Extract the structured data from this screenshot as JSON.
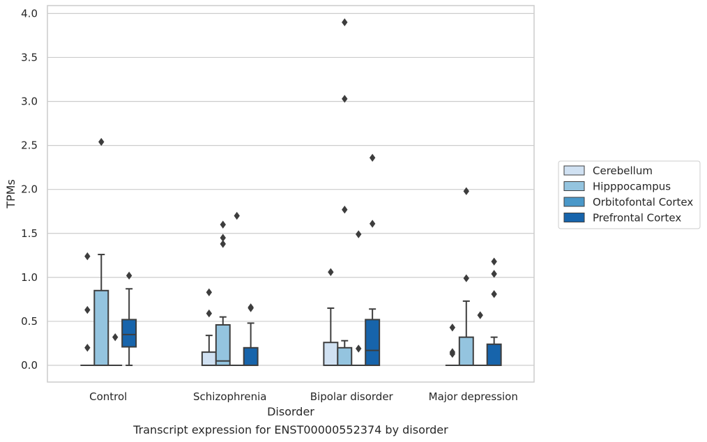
{
  "chart_data": {
    "type": "box",
    "title": "",
    "caption": "Transcript expression for ENST00000552374 by disorder",
    "xlabel": "Disorder",
    "ylabel": "TPMs",
    "ylim": [
      -0.19,
      4.09
    ],
    "yticks": [
      "0.0",
      "0.5",
      "1.0",
      "1.5",
      "2.0",
      "2.5",
      "3.0",
      "3.5",
      "4.0"
    ],
    "grid": "horizontal",
    "legend_position": "right",
    "categories": [
      "Control",
      "Schizophrenia",
      "Bipolar disorder",
      "Major depression"
    ],
    "series": [
      {
        "name": "Cerebellum",
        "color": "#d0e1f2",
        "boxes": [
          {
            "whislo": 0,
            "q1": 0,
            "med": 0,
            "q3": 0,
            "whishi": 0,
            "fliers": [
              0.2,
              0.63,
              1.24
            ]
          },
          {
            "whislo": 0,
            "q1": 0,
            "med": 0,
            "q3": 0.15,
            "whishi": 0.34,
            "fliers": [
              0.59,
              0.83
            ]
          },
          {
            "whislo": 0,
            "q1": 0,
            "med": 0,
            "q3": 0.26,
            "whishi": 0.65,
            "fliers": [
              1.06
            ]
          },
          {
            "whislo": 0,
            "q1": 0,
            "med": 0,
            "q3": 0,
            "whishi": 0,
            "fliers": [
              0.13,
              0.15,
              0.43
            ]
          }
        ]
      },
      {
        "name": "Hipppocampus",
        "color": "#94c4df",
        "boxes": [
          {
            "whislo": 0,
            "q1": 0,
            "med": 0,
            "q3": 0.85,
            "whishi": 1.26,
            "fliers": [
              2.54
            ]
          },
          {
            "whislo": 0,
            "q1": 0,
            "med": 0.05,
            "q3": 0.46,
            "whishi": 0.55,
            "fliers": [
              1.38,
              1.45,
              1.6
            ]
          },
          {
            "whislo": 0,
            "q1": 0,
            "med": 0,
            "q3": 0.2,
            "whishi": 0.28,
            "fliers": [
              1.77,
              3.03,
              3.9
            ]
          },
          {
            "whislo": 0,
            "q1": 0,
            "med": 0,
            "q3": 0.32,
            "whishi": 0.73,
            "fliers": [
              0.99,
              1.98
            ]
          }
        ]
      },
      {
        "name": "Orbitofontal Cortex",
        "color": "#4a98c9",
        "boxes": [
          {
            "whislo": 0,
            "q1": 0,
            "med": 0,
            "q3": 0,
            "whishi": 0,
            "fliers": [
              0.32
            ]
          },
          {
            "whislo": 0,
            "q1": 0,
            "med": 0,
            "q3": 0,
            "whishi": 0,
            "fliers": [
              1.7
            ]
          },
          {
            "whislo": 0,
            "q1": 0,
            "med": 0,
            "q3": 0,
            "whishi": 0,
            "fliers": [
              0.19,
              1.49
            ]
          },
          {
            "whislo": 0,
            "q1": 0,
            "med": 0,
            "q3": 0,
            "whishi": 0,
            "fliers": [
              0.57
            ]
          }
        ]
      },
      {
        "name": "Prefrontal Cortex",
        "color": "#1764ab",
        "boxes": [
          {
            "whislo": 0,
            "q1": 0.21,
            "med": 0.35,
            "q3": 0.52,
            "whishi": 0.87,
            "fliers": [
              1.02
            ]
          },
          {
            "whislo": 0,
            "q1": 0,
            "med": 0,
            "q3": 0.2,
            "whishi": 0.48,
            "fliers": [
              0.65,
              0.66
            ]
          },
          {
            "whislo": 0,
            "q1": 0,
            "med": 0.17,
            "q3": 0.52,
            "whishi": 0.64,
            "fliers": [
              1.61,
              2.36
            ]
          },
          {
            "whislo": 0,
            "q1": 0,
            "med": 0,
            "q3": 0.24,
            "whishi": 0.32,
            "fliers": [
              0.81,
              1.04,
              1.18
            ]
          }
        ]
      }
    ]
  }
}
